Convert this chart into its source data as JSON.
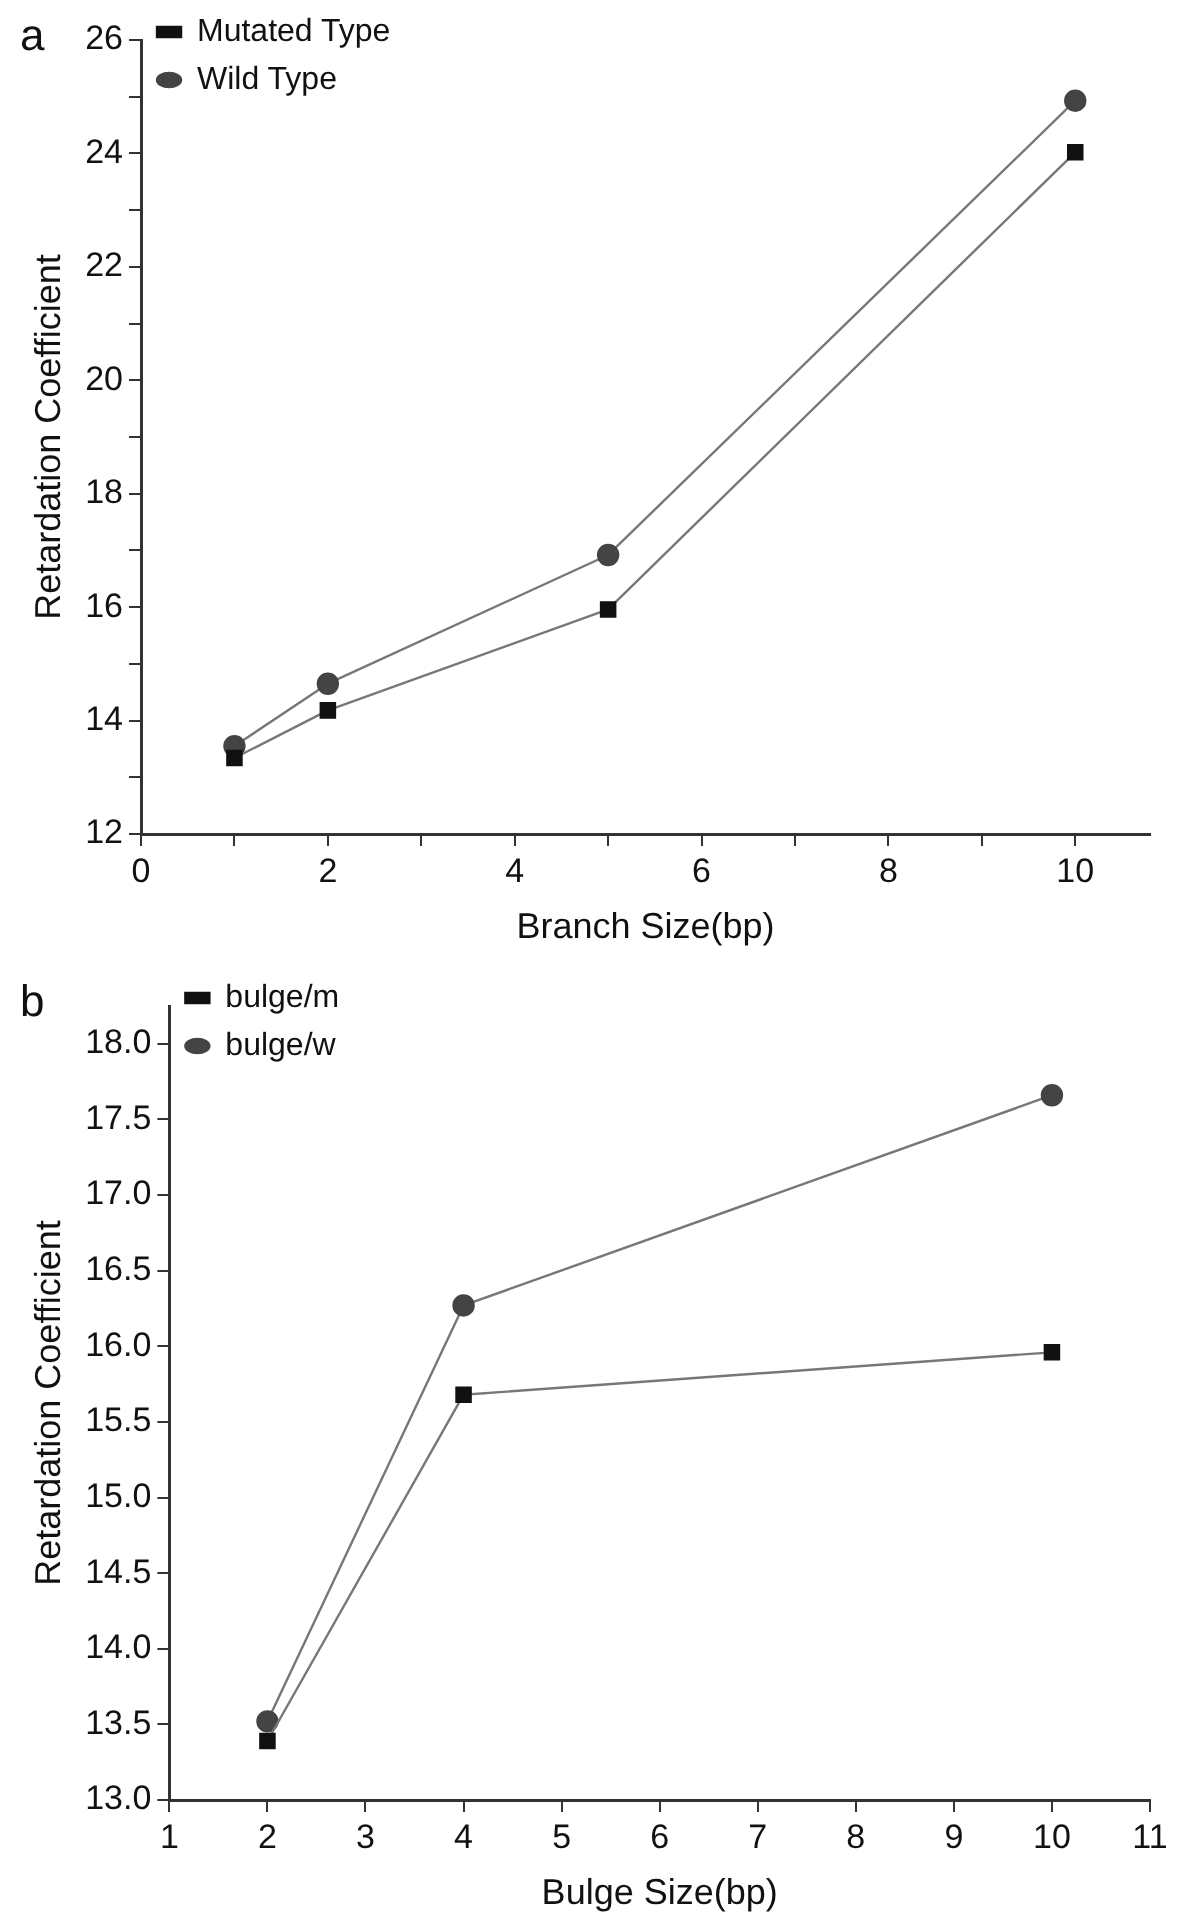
{
  "chart_data": [
    {
      "type": "line",
      "title": "a",
      "xlabel": "Branch Size(bp)",
      "ylabel": "Retardation Coefficient",
      "xlim": [
        0,
        10.8
      ],
      "xticks": [
        0,
        {
          "value": 1,
          "label": null
        },
        2,
        {
          "value": 3,
          "label": null
        },
        4,
        {
          "value": 5,
          "label": null
        },
        6,
        {
          "value": 7,
          "label": null
        },
        8,
        {
          "value": 9,
          "label": null
        },
        10
      ],
      "ylim": [
        12,
        26
      ],
      "yticks": [
        12,
        {
          "value": 13,
          "label": null
        },
        14,
        {
          "value": 15,
          "label": null
        },
        16,
        {
          "value": 17,
          "label": null
        },
        18,
        {
          "value": 19,
          "label": null
        },
        20,
        {
          "value": 21,
          "label": null
        },
        22,
        {
          "value": 23,
          "label": null
        },
        24,
        {
          "value": 25,
          "label": null
        },
        26
      ],
      "x": [
        1,
        2,
        5,
        10
      ],
      "grid": false,
      "legend": "top left",
      "line_style": "solid",
      "series": [
        {
          "name": "Mutated Type",
          "color": "#111111",
          "marker": "square",
          "values": [
            13.34,
            14.18,
            15.96,
            24.02
          ]
        },
        {
          "name": "Wild Type",
          "color": "#444444",
          "marker": "circle",
          "values": [
            13.55,
            14.65,
            16.92,
            24.93
          ]
        }
      ]
    },
    {
      "type": "line",
      "title": "b",
      "xlabel": "Bulge Size(bp)",
      "ylabel": "Retardation Coefficient",
      "xlim": [
        1,
        11
      ],
      "xticks": [
        1,
        2,
        3,
        4,
        5,
        6,
        7,
        8,
        9,
        10,
        11
      ],
      "ylim": [
        13,
        18.25
      ],
      "yticks": [
        {
          "value": 13,
          "label": "13.0"
        },
        {
          "value": 13.5,
          "label": "13.5"
        },
        {
          "value": 14,
          "label": "14.0"
        },
        {
          "value": 14.5,
          "label": "14.5"
        },
        {
          "value": 15,
          "label": "15.0"
        },
        {
          "value": 15.5,
          "label": "15.5"
        },
        {
          "value": 16,
          "label": "16.0"
        },
        {
          "value": 16.5,
          "label": "16.5"
        },
        {
          "value": 17,
          "label": "17.0"
        },
        {
          "value": 17.5,
          "label": "17.5"
        },
        {
          "value": 18,
          "label": "18.0"
        }
      ],
      "x": [
        2,
        4,
        10
      ],
      "grid": false,
      "legend": "top left",
      "line_style": "solid",
      "series": [
        {
          "name": "bulge/m",
          "color": "#111111",
          "marker": "square",
          "values": [
            13.39,
            15.68,
            15.96
          ]
        },
        {
          "name": "bulge/w",
          "color": "#444444",
          "marker": "circle",
          "values": [
            13.52,
            16.27,
            17.66
          ]
        }
      ]
    }
  ]
}
